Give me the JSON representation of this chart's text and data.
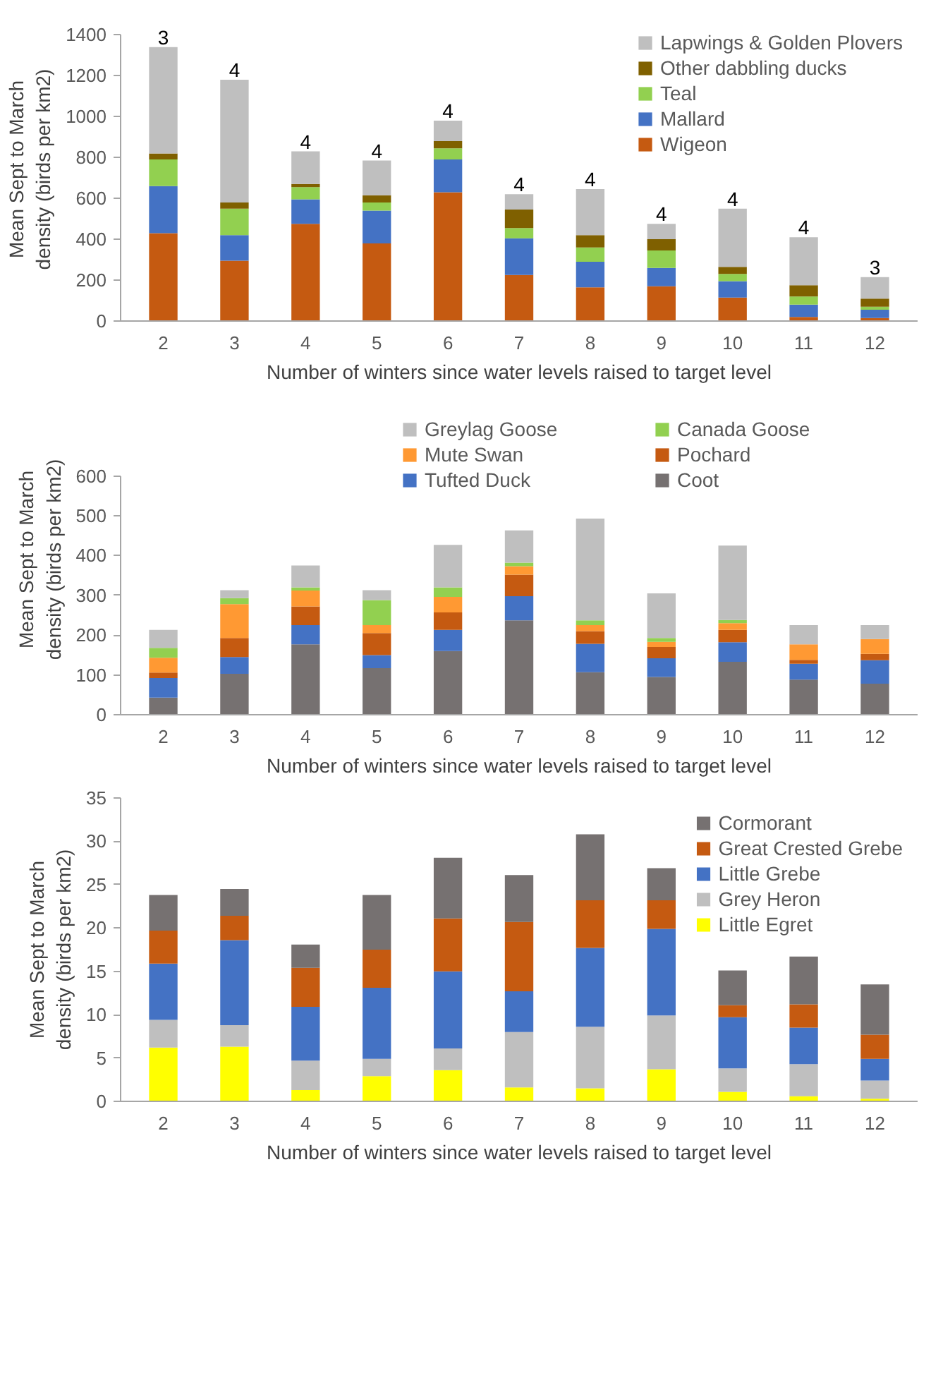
{
  "chart_data": [
    {
      "type": "bar",
      "stacked": true,
      "ylabel": "Mean Sept to March density (birds per km2)",
      "xlabel": "Number of winters since water levels raised to target level",
      "categories": [
        "2",
        "3",
        "4",
        "5",
        "6",
        "7",
        "8",
        "9",
        "10",
        "11",
        "12"
      ],
      "ylim": [
        0,
        1400
      ],
      "yticks": [
        0,
        200,
        400,
        600,
        800,
        1000,
        1200,
        1400
      ],
      "grid": false,
      "legend": "top right",
      "series": [
        {
          "name": "Wigeon",
          "color": "#c55a11",
          "values": [
            430,
            295,
            475,
            380,
            630,
            225,
            165,
            170,
            115,
            20,
            15
          ]
        },
        {
          "name": "Mallard",
          "color": "#4472c4",
          "values": [
            230,
            125,
            120,
            160,
            160,
            180,
            125,
            90,
            80,
            60,
            40
          ]
        },
        {
          "name": "Teal",
          "color": "#92d050",
          "values": [
            130,
            130,
            60,
            40,
            55,
            50,
            70,
            85,
            35,
            40,
            15
          ]
        },
        {
          "name": "Other dabbling ducks",
          "color": "#7f6000",
          "values": [
            30,
            30,
            15,
            35,
            35,
            90,
            60,
            55,
            35,
            55,
            40
          ]
        },
        {
          "name": "Lapwings & Golden Plovers",
          "color": "#bfbfbf",
          "values": [
            520,
            600,
            160,
            170,
            100,
            75,
            225,
            75,
            285,
            235,
            105
          ]
        }
      ],
      "annotations": [
        {
          "text": "3",
          "x": "2",
          "y": 1340
        },
        {
          "text": "4",
          "x": "3",
          "y": 1180
        },
        {
          "text": "4",
          "x": "4",
          "y": 830
        },
        {
          "text": "4",
          "x": "5",
          "y": 785
        },
        {
          "text": "4",
          "x": "6",
          "y": 980
        },
        {
          "text": "4",
          "x": "7",
          "y": 620
        },
        {
          "text": "4",
          "x": "8",
          "y": 645
        },
        {
          "text": "4",
          "x": "9",
          "y": 475
        },
        {
          "text": "4",
          "x": "10",
          "y": 550
        },
        {
          "text": "4",
          "x": "11",
          "y": 410
        },
        {
          "text": "3",
          "x": "12",
          "y": 215
        }
      ]
    },
    {
      "type": "bar",
      "stacked": true,
      "ylabel": "Mean Sept to March density (birds per km2)",
      "xlabel": "Number of winters since water levels raised to target level",
      "categories": [
        "2",
        "3",
        "4",
        "5",
        "6",
        "7",
        "8",
        "9",
        "10",
        "11",
        "12"
      ],
      "ylim": [
        0,
        600
      ],
      "yticks": [
        0,
        100,
        200,
        300,
        400,
        500,
        600
      ],
      "grid": false,
      "legend": "top",
      "series": [
        {
          "name": "Coot",
          "color": "#767171",
          "values": [
            43,
            103,
            177,
            117,
            160,
            237,
            107,
            95,
            133,
            88,
            78
          ]
        },
        {
          "name": "Tufted Duck",
          "color": "#4472c4",
          "values": [
            49,
            42,
            48,
            33,
            53,
            61,
            71,
            47,
            49,
            40,
            59
          ]
        },
        {
          "name": "Pochard",
          "color": "#c55a11",
          "values": [
            14,
            48,
            47,
            55,
            44,
            54,
            32,
            28,
            31,
            10,
            16
          ]
        },
        {
          "name": "Mute Swan",
          "color": "#ff9933",
          "values": [
            37,
            85,
            40,
            20,
            39,
            21,
            15,
            13,
            17,
            39,
            37
          ]
        },
        {
          "name": "Canada Goose",
          "color": "#92d050",
          "values": [
            25,
            15,
            8,
            63,
            24,
            9,
            12,
            10,
            8,
            0,
            0
          ]
        },
        {
          "name": "Greylag Goose",
          "color": "#bfbfbf",
          "values": [
            45,
            20,
            55,
            25,
            107,
            81,
            256,
            112,
            187,
            48,
            35
          ]
        }
      ]
    },
    {
      "type": "bar",
      "stacked": true,
      "ylabel": "Mean Sept to March density (birds per km2)",
      "xlabel": "Number of winters since water levels raised to target level",
      "categories": [
        "2",
        "3",
        "4",
        "5",
        "6",
        "7",
        "8",
        "9",
        "10",
        "11",
        "12"
      ],
      "ylim": [
        0,
        35
      ],
      "yticks": [
        0,
        5,
        10,
        15,
        20,
        25,
        30,
        35
      ],
      "grid": false,
      "legend": "top right",
      "series": [
        {
          "name": "Little Egret",
          "color": "#ffff00",
          "values": [
            6.2,
            6.3,
            1.3,
            2.9,
            3.6,
            1.6,
            1.5,
            3.7,
            1.1,
            0.6,
            0.3
          ]
        },
        {
          "name": "Grey Heron",
          "color": "#bfbfbf",
          "values": [
            3.2,
            2.5,
            3.4,
            2.0,
            2.5,
            6.4,
            7.1,
            6.2,
            2.7,
            3.7,
            2.1
          ]
        },
        {
          "name": "Little Grebe",
          "color": "#4472c4",
          "values": [
            6.5,
            9.8,
            6.2,
            8.2,
            8.9,
            4.7,
            9.1,
            10.0,
            5.9,
            4.2,
            2.5
          ]
        },
        {
          "name": "Great Crested Grebe",
          "color": "#c55a11",
          "values": [
            3.8,
            2.8,
            4.5,
            4.4,
            6.1,
            8.0,
            5.5,
            3.3,
            1.4,
            2.7,
            2.8
          ]
        },
        {
          "name": "Cormorant",
          "color": "#767171",
          "values": [
            4.1,
            3.1,
            2.7,
            6.3,
            7.0,
            5.4,
            7.6,
            3.7,
            4.0,
            5.5,
            5.8
          ]
        }
      ]
    }
  ]
}
